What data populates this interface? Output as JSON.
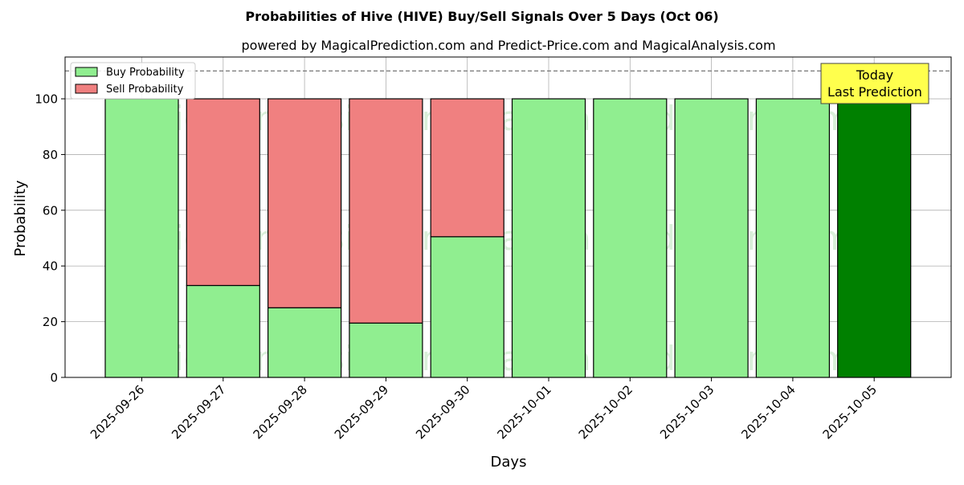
{
  "chart_data": {
    "type": "bar",
    "stacked": true,
    "title": "Probabilities of Hive (HIVE) Buy/Sell Signals Over 5 Days (Oct 06)",
    "subtitle": "powered by MagicalPrediction.com and Predict-Price.com and MagicalAnalysis.com",
    "xlabel": "Days",
    "ylabel": "Probability",
    "ylim": [
      0,
      115
    ],
    "yticks": [
      0,
      20,
      40,
      60,
      80,
      100
    ],
    "grid": true,
    "legend_position": "top-left",
    "reference_line": {
      "value": 110,
      "style": "dashed"
    },
    "categories": [
      "2025-09-26",
      "2025-09-27",
      "2025-09-28",
      "2025-09-29",
      "2025-09-30",
      "2025-10-01",
      "2025-10-02",
      "2025-10-03",
      "2025-10-04",
      "2025-10-05"
    ],
    "series": [
      {
        "name": "Buy Probability",
        "color": "#90ee90",
        "values": [
          100,
          33,
          25,
          19.5,
          50.5,
          100,
          100,
          100,
          100,
          100
        ]
      },
      {
        "name": "Sell Probability",
        "color": "#f08080",
        "values": [
          0,
          67,
          75,
          80.5,
          49.5,
          0,
          0,
          0,
          0,
          0
        ]
      }
    ],
    "highlight": {
      "index": 9,
      "color": "#008000"
    },
    "annotation": {
      "lines": [
        "Today",
        "Last Prediction"
      ],
      "background": "#ffff4d"
    },
    "watermarks": [
      "MagicalAnalysis.com",
      "MagicalPrediction.com"
    ]
  }
}
